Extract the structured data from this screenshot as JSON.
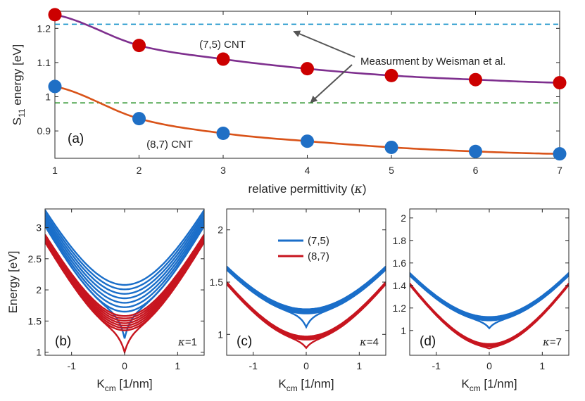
{
  "chart_data": [
    {
      "id": "a",
      "type": "line",
      "panel_label": "(a)",
      "xlabel": "relative permittivity (",
      "xlabel_symbol": "κ",
      "xlabel_close": ")",
      "ylabel_main": "S",
      "ylabel_sub": "11",
      "ylabel_rest": " energy [eV]",
      "xlim": [
        1,
        7
      ],
      "ylim": [
        0.82,
        1.25
      ],
      "xticks": [
        1,
        2,
        3,
        4,
        5,
        6,
        7
      ],
      "yticks": [
        0.9,
        1,
        1.1,
        1.2
      ],
      "ytick_labels": [
        "0.9",
        "1",
        "1.1",
        "1.2"
      ],
      "series": [
        {
          "name": "(7,5) CNT",
          "color": "#7e2f8e",
          "marker_color": "#cc0000",
          "points_x": [
            1,
            2,
            3,
            4,
            5,
            6,
            7
          ],
          "points_y": [
            1.24,
            1.15,
            1.11,
            1.082,
            1.062,
            1.05,
            1.041
          ]
        },
        {
          "name": "(8,7) CNT",
          "color": "#d95319",
          "marker_color": "#1f6fc5",
          "points_x": [
            1,
            2,
            3,
            4,
            5,
            6,
            7
          ],
          "points_y": [
            1.03,
            0.936,
            0.893,
            0.87,
            0.852,
            0.84,
            0.833
          ]
        }
      ],
      "reference_lines": [
        {
          "y": 1.212,
          "color": "#0f8fc8"
        },
        {
          "y": 0.982,
          "color": "#1a8a1a"
        }
      ],
      "annotation": "Measurment by Weisman et al."
    },
    {
      "id": "b",
      "type": "line",
      "panel_label": "(b)",
      "kappa_label": "=1",
      "xlim": [
        -1.5,
        1.5
      ],
      "ylim": [
        0.95,
        3.3
      ],
      "xticks": [
        -1,
        0,
        1
      ],
      "yticks": [
        1,
        1.5,
        2,
        2.5,
        3
      ],
      "ytick_labels": [
        "1",
        "1.5",
        "2",
        "2.5",
        "3"
      ],
      "ylabel": "Energy [eV]",
      "xlabel_main": "K",
      "xlabel_sub": "cm",
      "xlabel_rest": " [1/nm]",
      "series": [
        {
          "name": "(7,5)",
          "color": "#1a6ec9",
          "ground_min": 1.22,
          "band_base": 1.65,
          "band_top": 2.08,
          "band_count": 7,
          "curvature": 1.05
        },
        {
          "name": "(8,7)",
          "color": "#c7151f",
          "ground_min": 1.0,
          "band_base": 1.35,
          "band_top": 1.58,
          "band_count": 7,
          "curvature": 1.0
        }
      ]
    },
    {
      "id": "c",
      "type": "line",
      "panel_label": "(c)",
      "kappa_label": "=4",
      "xlim": [
        -1.5,
        1.5
      ],
      "ylim": [
        0.8,
        2.2
      ],
      "xticks": [
        -1,
        0,
        1
      ],
      "yticks": [
        1,
        1.5,
        2
      ],
      "ytick_labels": [
        "1",
        "1.5",
        "2"
      ],
      "xlabel_main": "K",
      "xlabel_sub": "cm",
      "xlabel_rest": " [1/nm]",
      "series": [
        {
          "name": "(7,5)",
          "color": "#1a6ec9",
          "ground_min": 1.07,
          "band_base": 1.2,
          "band_top": 1.24,
          "band_count": 5,
          "curvature": 0.45
        },
        {
          "name": "(8,7)",
          "color": "#c7151f",
          "ground_min": 0.87,
          "band_base": 0.95,
          "band_top": 0.98,
          "band_count": 5,
          "curvature": 0.47
        }
      ],
      "legend": [
        "(7,5)",
        "(8,7)"
      ]
    },
    {
      "id": "d",
      "type": "line",
      "panel_label": "(d)",
      "kappa_label": "=7",
      "xlim": [
        -1.5,
        1.5
      ],
      "ylim": [
        0.78,
        2.08
      ],
      "xticks": [
        -1,
        0,
        1
      ],
      "yticks": [
        1,
        1.2,
        1.4,
        1.6,
        1.8,
        2
      ],
      "ytick_labels": [
        "1",
        "1.2",
        "1.4",
        "1.6",
        "1.8",
        "2"
      ],
      "xlabel_main": "K",
      "xlabel_sub": "cm",
      "xlabel_rest": " [1/nm]",
      "series": [
        {
          "name": "(7,5)",
          "color": "#1a6ec9",
          "ground_min": 1.02,
          "band_base": 1.09,
          "band_top": 1.12,
          "band_count": 5,
          "curvature": 0.42
        },
        {
          "name": "(8,7)",
          "color": "#c7151f",
          "ground_min": 0.84,
          "band_base": 0.86,
          "band_top": 0.88,
          "band_count": 5,
          "curvature": 0.46
        }
      ]
    }
  ]
}
